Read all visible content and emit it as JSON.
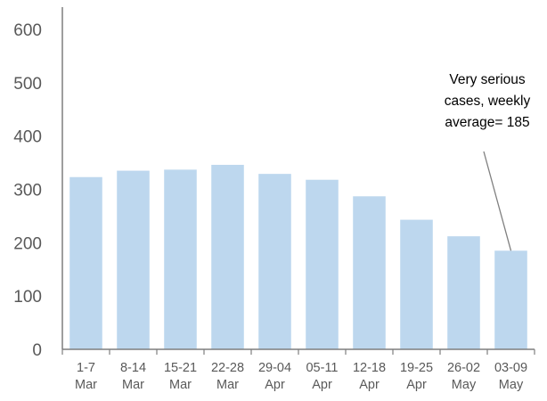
{
  "chart_data": {
    "type": "bar",
    "title": "",
    "xlabel": "",
    "ylabel": "",
    "ylim": [
      0,
      600
    ],
    "yticks": [
      0,
      100,
      200,
      300,
      400,
      500,
      600
    ],
    "grid": false,
    "categories": [
      [
        "1-7",
        "Mar"
      ],
      [
        "8-14",
        "Mar"
      ],
      [
        "15-21",
        "Mar"
      ],
      [
        "22-28",
        "Mar"
      ],
      [
        "29-04",
        "Apr"
      ],
      [
        "05-11",
        "Apr"
      ],
      [
        "12-18",
        "Apr"
      ],
      [
        "19-25",
        "Apr"
      ],
      [
        "26-02",
        "May"
      ],
      [
        "03-09",
        "May"
      ]
    ],
    "series": [
      {
        "values": [
          323,
          335,
          337,
          346,
          329,
          318,
          287,
          243,
          212,
          185
        ]
      }
    ],
    "bar_color": "#bdd7ee",
    "axis_color": "#7f7f7f",
    "annotation": {
      "lines": [
        "Very serious",
        "cases, weekly",
        "average=  185"
      ],
      "target_index": 9
    }
  }
}
